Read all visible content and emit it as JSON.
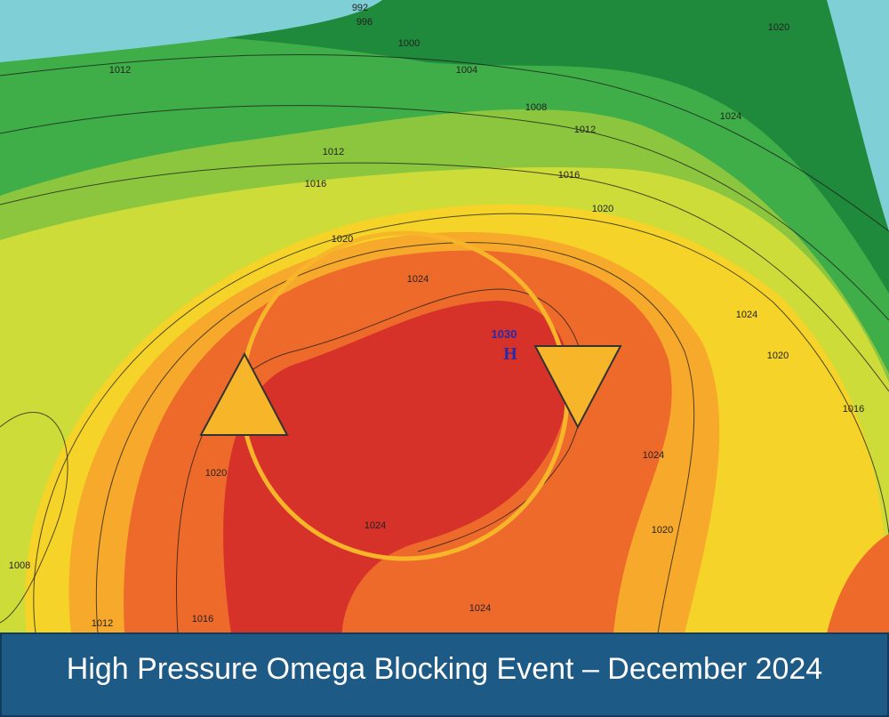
{
  "map": {
    "isobar_labels": [
      "992",
      "996",
      "1000",
      "1004",
      "1008",
      "1012",
      "1016",
      "1020",
      "1020",
      "1012",
      "1012",
      "1016",
      "1020",
      "1024",
      "1024",
      "1020",
      "1016",
      "1024",
      "1020",
      "1024",
      "1024",
      "1020",
      "1008",
      "1012",
      "1016",
      "1024"
    ],
    "high_center": {
      "pressure": "1030",
      "symbol": "H"
    },
    "caption": "High Pressure Omega Blocking Event – December 2024"
  }
}
